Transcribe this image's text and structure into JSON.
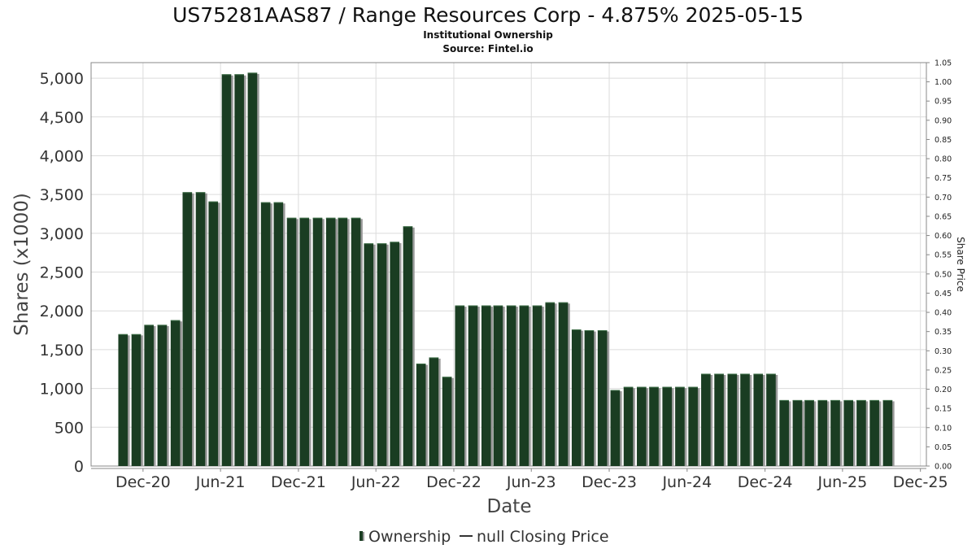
{
  "chart_data": {
    "type": "bar",
    "title": "US75281AAS87 / Range Resources Corp - 4.875% 2025-05-15",
    "subtitle_lines": [
      "Institutional Ownership",
      "Source: Fintel.io"
    ],
    "xlabel": "Date",
    "ylabel": "Shares (x1000)",
    "y2label": "Share Price",
    "ylim": [
      0,
      5200
    ],
    "y_ticks": [
      0,
      500,
      1000,
      1500,
      2000,
      2500,
      3000,
      3500,
      4000,
      4500,
      5000
    ],
    "y_tick_labels": [
      "0",
      "500",
      "1,000",
      "1,500",
      "2,000",
      "2,500",
      "3,000",
      "3,500",
      "4,000",
      "4,500",
      "5,000"
    ],
    "y2lim": [
      0,
      1.05
    ],
    "y2_tick_labels": [
      "0.00",
      "0.05",
      "0.10",
      "0.15",
      "0.20",
      "0.25",
      "0.30",
      "0.35",
      "0.40",
      "0.45",
      "0.50",
      "0.55",
      "0.60",
      "0.65",
      "0.70",
      "0.75",
      "0.80",
      "0.85",
      "0.90",
      "0.95",
      "1.00",
      "1.05"
    ],
    "x_range": [
      "2020-08-01",
      "2025-12-15"
    ],
    "x_ticks": [
      {
        "date": "2020-12-01",
        "label": "Dec-20"
      },
      {
        "date": "2021-06-01",
        "label": "Jun-21"
      },
      {
        "date": "2021-12-01",
        "label": "Dec-21"
      },
      {
        "date": "2022-06-01",
        "label": "Jun-22"
      },
      {
        "date": "2022-12-01",
        "label": "Dec-22"
      },
      {
        "date": "2023-06-01",
        "label": "Jun-23"
      },
      {
        "date": "2023-12-01",
        "label": "Dec-23"
      },
      {
        "date": "2024-06-01",
        "label": "Jun-24"
      },
      {
        "date": "2024-12-01",
        "label": "Dec-24"
      },
      {
        "date": "2025-06-01",
        "label": "Jun-25"
      },
      {
        "date": "2025-12-01",
        "label": "Dec-25"
      }
    ],
    "grid": true,
    "legend_position": "bottom",
    "series": [
      {
        "name": "Ownership",
        "color": "#1a3d22",
        "points": [
          {
            "x": "2020-10-15",
            "y": 1700
          },
          {
            "x": "2020-11-15",
            "y": 1700
          },
          {
            "x": "2020-12-15",
            "y": 1820
          },
          {
            "x": "2021-01-15",
            "y": 1820
          },
          {
            "x": "2021-02-15",
            "y": 1880
          },
          {
            "x": "2021-03-15",
            "y": 3530
          },
          {
            "x": "2021-04-15",
            "y": 3530
          },
          {
            "x": "2021-05-15",
            "y": 3410
          },
          {
            "x": "2021-06-15",
            "y": 5050
          },
          {
            "x": "2021-07-15",
            "y": 5050
          },
          {
            "x": "2021-08-15",
            "y": 5070
          },
          {
            "x": "2021-09-15",
            "y": 3400
          },
          {
            "x": "2021-10-15",
            "y": 3400
          },
          {
            "x": "2021-11-15",
            "y": 3200
          },
          {
            "x": "2021-12-15",
            "y": 3200
          },
          {
            "x": "2022-01-15",
            "y": 3200
          },
          {
            "x": "2022-02-15",
            "y": 3200
          },
          {
            "x": "2022-03-15",
            "y": 3200
          },
          {
            "x": "2022-04-15",
            "y": 3200
          },
          {
            "x": "2022-05-15",
            "y": 2870
          },
          {
            "x": "2022-06-15",
            "y": 2870
          },
          {
            "x": "2022-07-15",
            "y": 2890
          },
          {
            "x": "2022-08-15",
            "y": 3090
          },
          {
            "x": "2022-09-15",
            "y": 1320
          },
          {
            "x": "2022-10-15",
            "y": 1400
          },
          {
            "x": "2022-11-15",
            "y": 1150
          },
          {
            "x": "2022-12-15",
            "y": 2070
          },
          {
            "x": "2023-01-15",
            "y": 2070
          },
          {
            "x": "2023-02-15",
            "y": 2070
          },
          {
            "x": "2023-03-15",
            "y": 2070
          },
          {
            "x": "2023-04-15",
            "y": 2070
          },
          {
            "x": "2023-05-15",
            "y": 2070
          },
          {
            "x": "2023-06-15",
            "y": 2070
          },
          {
            "x": "2023-07-15",
            "y": 2110
          },
          {
            "x": "2023-08-15",
            "y": 2110
          },
          {
            "x": "2023-09-15",
            "y": 1760
          },
          {
            "x": "2023-10-15",
            "y": 1750
          },
          {
            "x": "2023-11-15",
            "y": 1750
          },
          {
            "x": "2023-12-15",
            "y": 980
          },
          {
            "x": "2024-01-15",
            "y": 1020
          },
          {
            "x": "2024-02-15",
            "y": 1020
          },
          {
            "x": "2024-03-15",
            "y": 1020
          },
          {
            "x": "2024-04-15",
            "y": 1020
          },
          {
            "x": "2024-05-15",
            "y": 1020
          },
          {
            "x": "2024-06-15",
            "y": 1020
          },
          {
            "x": "2024-07-15",
            "y": 1190
          },
          {
            "x": "2024-08-15",
            "y": 1190
          },
          {
            "x": "2024-09-15",
            "y": 1190
          },
          {
            "x": "2024-10-15",
            "y": 1190
          },
          {
            "x": "2024-11-15",
            "y": 1190
          },
          {
            "x": "2024-12-15",
            "y": 1190
          },
          {
            "x": "2025-01-15",
            "y": 850
          },
          {
            "x": "2025-02-15",
            "y": 850
          },
          {
            "x": "2025-03-15",
            "y": 850
          },
          {
            "x": "2025-04-15",
            "y": 850
          },
          {
            "x": "2025-05-15",
            "y": 850
          },
          {
            "x": "2025-06-15",
            "y": 850
          },
          {
            "x": "2025-07-15",
            "y": 850
          },
          {
            "x": "2025-08-15",
            "y": 850
          },
          {
            "x": "2025-09-15",
            "y": 850
          }
        ]
      },
      {
        "name": "null Closing Price",
        "color": "#333333",
        "points": []
      }
    ]
  }
}
